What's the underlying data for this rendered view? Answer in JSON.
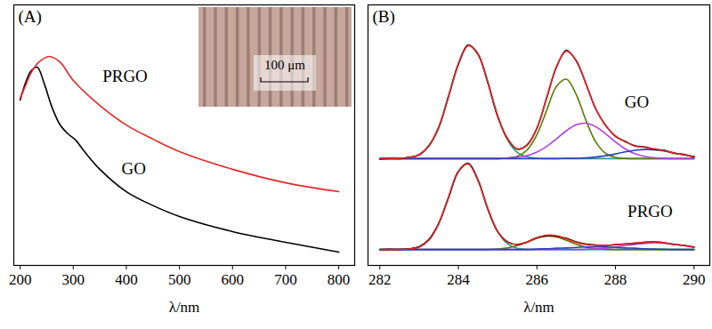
{
  "chart_data": [
    {
      "type": "line",
      "title": "(A)",
      "x_label": "λ/nm",
      "xlim": [
        188,
        830
      ],
      "xticks": [
        200,
        300,
        400,
        500,
        600,
        700,
        800
      ],
      "ylim": [
        0,
        1
      ],
      "tick_labels": "x",
      "series": [
        {
          "color": "#000000",
          "x": [
            200,
            210,
            220,
            232,
            245,
            260,
            275,
            290,
            305,
            320,
            350,
            400,
            450,
            500,
            600,
            700,
            800
          ],
          "values": [
            0.635,
            0.7,
            0.745,
            0.761,
            0.7,
            0.607,
            0.54,
            0.505,
            0.48,
            0.44,
            0.369,
            0.283,
            0.23,
            0.188,
            0.13,
            0.089,
            0.051
          ]
        },
        {
          "color": "#e8262a",
          "x": [
            200,
            210,
            220,
            235,
            255,
            275,
            300,
            350,
            400,
            450,
            500,
            600,
            700,
            800
          ],
          "values": [
            0.642,
            0.69,
            0.737,
            0.78,
            0.802,
            0.78,
            0.71,
            0.614,
            0.539,
            0.485,
            0.437,
            0.369,
            0.317,
            0.283
          ]
        }
      ],
      "annotations": [
        {
          "text": "PRGO",
          "x": 397.5,
          "y": 0.727
        },
        {
          "text": "GO",
          "x": 414,
          "y": 0.369
        }
      ],
      "inset": {
        "scale_bar_label": "100 μm"
      }
    },
    {
      "type": "line",
      "title": "(B)",
      "x_label": "λ/nm",
      "xlim": [
        281.7,
        290.4
      ],
      "xticks": [
        282,
        284,
        286,
        288,
        290
      ],
      "ylim": [
        0,
        1
      ],
      "tick_labels": "x",
      "x": [
        282,
        282.25,
        282.5,
        282.75,
        283,
        283.25,
        283.5,
        283.75,
        284,
        284.25,
        284.5,
        284.75,
        285,
        285.25,
        285.5,
        285.75,
        286,
        286.25,
        286.5,
        286.75,
        287,
        287.25,
        287.5,
        287.75,
        288,
        288.25,
        288.5,
        288.75,
        289,
        289.25,
        289.5,
        289.75,
        290
      ],
      "series": [
        {
          "color": "#19a08c",
          "values": [
            0.41,
            0.41,
            0.411,
            0.414,
            0.425,
            0.458,
            0.531,
            0.648,
            0.774,
            0.844,
            0.812,
            0.701,
            0.574,
            0.482,
            0.434,
            0.417,
            0.411,
            0.41,
            0.41,
            0.41,
            0.41,
            0.41,
            0.41,
            0.41,
            0.41,
            0.41,
            0.41,
            0.41,
            0.41,
            0.41,
            0.41,
            0.41,
            0.41
          ]
        },
        {
          "color": "#5a7a00",
          "values": [
            0.41,
            0.41,
            0.41,
            0.41,
            0.41,
            0.41,
            0.41,
            0.41,
            0.41,
            0.41,
            0.41,
            0.41,
            0.41,
            0.412,
            0.419,
            0.443,
            0.502,
            0.596,
            0.688,
            0.715,
            0.656,
            0.556,
            0.473,
            0.43,
            0.415,
            0.411,
            0.41,
            0.41,
            0.41,
            0.41,
            0.41,
            0.41,
            0.41
          ]
        },
        {
          "color": "#b040e0",
          "values": [
            0.41,
            0.41,
            0.41,
            0.41,
            0.41,
            0.41,
            0.41,
            0.41,
            0.41,
            0.41,
            0.41,
            0.41,
            0.41,
            0.412,
            0.415,
            0.421,
            0.435,
            0.457,
            0.486,
            0.517,
            0.54,
            0.546,
            0.532,
            0.505,
            0.474,
            0.447,
            0.428,
            0.418,
            0.413,
            0.411,
            0.41,
            0.41,
            0.41
          ]
        },
        {
          "color": "#2a3fbf",
          "values": [
            0.41,
            0.41,
            0.41,
            0.41,
            0.41,
            0.41,
            0.41,
            0.41,
            0.41,
            0.41,
            0.41,
            0.41,
            0.41,
            0.41,
            0.41,
            0.41,
            0.41,
            0.41,
            0.41,
            0.411,
            0.411,
            0.413,
            0.416,
            0.421,
            0.428,
            0.436,
            0.442,
            0.445,
            0.444,
            0.439,
            0.431,
            0.424,
            0.418
          ]
        },
        {
          "color": "#000000",
          "values": [
            0.408,
            0.411,
            0.41,
            0.415,
            0.424,
            0.46,
            0.529,
            0.65,
            0.772,
            0.846,
            0.81,
            0.703,
            0.572,
            0.487,
            0.446,
            0.463,
            0.526,
            0.645,
            0.762,
            0.826,
            0.785,
            0.697,
            0.599,
            0.538,
            0.495,
            0.476,
            0.458,
            0.455,
            0.445,
            0.442,
            0.43,
            0.426,
            0.416
          ]
        },
        {
          "color": "#e8262a",
          "values": [
            0.41,
            0.41,
            0.411,
            0.414,
            0.425,
            0.458,
            0.531,
            0.648,
            0.774,
            0.844,
            0.812,
            0.701,
            0.574,
            0.485,
            0.448,
            0.461,
            0.528,
            0.643,
            0.764,
            0.823,
            0.787,
            0.695,
            0.601,
            0.536,
            0.497,
            0.474,
            0.46,
            0.453,
            0.447,
            0.44,
            0.432,
            0.424,
            0.418
          ]
        },
        {
          "color": "#19a08c",
          "values": [
            0.061,
            0.061,
            0.061,
            0.063,
            0.07,
            0.097,
            0.16,
            0.262,
            0.361,
            0.39,
            0.326,
            0.218,
            0.129,
            0.083,
            0.066,
            0.062,
            0.061,
            0.061,
            0.061,
            0.061,
            0.061,
            0.061,
            0.061,
            0.061,
            0.061,
            0.061,
            0.061,
            0.061,
            0.061,
            0.061,
            0.061,
            0.061,
            0.061
          ]
        },
        {
          "color": "#5a7a00",
          "values": [
            0.061,
            0.061,
            0.061,
            0.061,
            0.061,
            0.061,
            0.061,
            0.061,
            0.061,
            0.061,
            0.061,
            0.061,
            0.063,
            0.067,
            0.076,
            0.089,
            0.104,
            0.113,
            0.109,
            0.096,
            0.081,
            0.07,
            0.064,
            0.062,
            0.061,
            0.061,
            0.061,
            0.061,
            0.061,
            0.061,
            0.061,
            0.061,
            0.061
          ]
        },
        {
          "color": "#b040e0",
          "values": [
            0.061,
            0.061,
            0.061,
            0.061,
            0.061,
            0.061,
            0.061,
            0.061,
            0.061,
            0.061,
            0.061,
            0.061,
            0.061,
            0.061,
            0.061,
            0.061,
            0.061,
            0.061,
            0.061,
            0.061,
            0.061,
            0.062,
            0.064,
            0.066,
            0.07,
            0.076,
            0.081,
            0.085,
            0.087,
            0.085,
            0.081,
            0.076,
            0.07
          ]
        },
        {
          "color": "#2a3fbf",
          "values": [
            0.061,
            0.061,
            0.061,
            0.061,
            0.061,
            0.061,
            0.061,
            0.061,
            0.061,
            0.061,
            0.061,
            0.061,
            0.061,
            0.061,
            0.061,
            0.061,
            0.063,
            0.064,
            0.066,
            0.067,
            0.069,
            0.071,
            0.071,
            0.071,
            0.069,
            0.067,
            0.066,
            0.064,
            0.063,
            0.062,
            0.061,
            0.061,
            0.061
          ]
        },
        {
          "color": "#000000",
          "values": [
            0.06,
            0.062,
            0.061,
            0.064,
            0.072,
            0.1,
            0.162,
            0.26,
            0.36,
            0.392,
            0.328,
            0.216,
            0.13,
            0.091,
            0.08,
            0.09,
            0.107,
            0.114,
            0.112,
            0.104,
            0.09,
            0.082,
            0.078,
            0.076,
            0.08,
            0.083,
            0.085,
            0.089,
            0.09,
            0.087,
            0.08,
            0.077,
            0.071
          ]
        },
        {
          "color": "#e8262a",
          "values": [
            0.061,
            0.061,
            0.061,
            0.063,
            0.07,
            0.097,
            0.16,
            0.262,
            0.361,
            0.39,
            0.326,
            0.218,
            0.131,
            0.089,
            0.081,
            0.09,
            0.106,
            0.116,
            0.114,
            0.102,
            0.089,
            0.08,
            0.077,
            0.077,
            0.079,
            0.082,
            0.086,
            0.088,
            0.089,
            0.086,
            0.081,
            0.076,
            0.07
          ]
        }
      ],
      "annotations": [
        {
          "text": "GO",
          "x": 288.54,
          "y": 0.625
        },
        {
          "text": "PRGO",
          "x": 288.88,
          "y": 0.208
        }
      ]
    }
  ]
}
